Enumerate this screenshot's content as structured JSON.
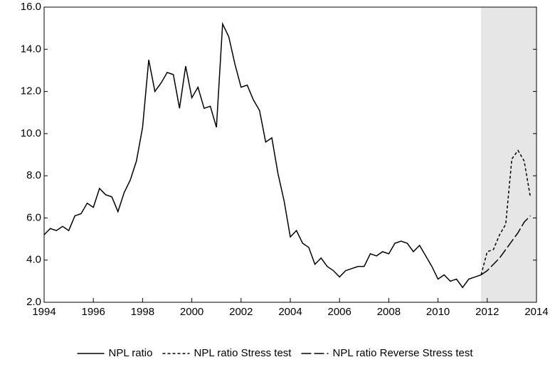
{
  "chart_data": {
    "type": "line",
    "xlim": [
      1994,
      2014
    ],
    "xticks": [
      1994,
      1996,
      1998,
      2000,
      2002,
      2004,
      2006,
      2008,
      2010,
      2012,
      2014
    ],
    "ylim": [
      2,
      16
    ],
    "yticks": [
      {
        "value": 2,
        "label": "2.0"
      },
      {
        "value": 4,
        "label": "4.0"
      },
      {
        "value": 6,
        "label": "6.0"
      },
      {
        "value": 8,
        "label": "8.0"
      },
      {
        "value": 10,
        "label": "10.0"
      },
      {
        "value": 12,
        "label": "12.0"
      },
      {
        "value": 14,
        "label": "14.0"
      },
      {
        "value": 16,
        "label": "16.0"
      }
    ],
    "shaded_region": [
      2011.75,
      2014
    ],
    "shade_color": "#e6e6e6",
    "legend": "bottom",
    "series": [
      {
        "name": "NPL ratio",
        "color": "#000000",
        "dash": "solid",
        "x": [
          1994,
          1994.25,
          1994.5,
          1994.75,
          1995,
          1995.25,
          1995.5,
          1995.75,
          1996,
          1996.25,
          1996.5,
          1996.75,
          1997,
          1997.25,
          1997.5,
          1997.75,
          1998,
          1998.25,
          1998.5,
          1998.75,
          1999,
          1999.25,
          1999.5,
          1999.75,
          2000,
          2000.25,
          2000.5,
          2000.75,
          2001,
          2001.25,
          2001.5,
          2001.75,
          2002,
          2002.25,
          2002.5,
          2002.75,
          2003,
          2003.25,
          2003.5,
          2003.75,
          2004,
          2004.25,
          2004.5,
          2004.75,
          2005,
          2005.25,
          2005.5,
          2005.75,
          2006,
          2006.25,
          2006.5,
          2006.75,
          2007,
          2007.25,
          2007.5,
          2007.75,
          2008,
          2008.25,
          2008.5,
          2008.75,
          2009,
          2009.25,
          2009.5,
          2009.75,
          2010,
          2010.25,
          2010.5,
          2010.75,
          2011,
          2011.25,
          2011.5,
          2011.75
        ],
        "values": [
          5.2,
          5.5,
          5.4,
          5.6,
          5.4,
          6.1,
          6.2,
          6.7,
          6.5,
          7.4,
          7.1,
          7.0,
          6.3,
          7.2,
          7.8,
          8.7,
          10.3,
          13.5,
          12.0,
          12.4,
          12.9,
          12.8,
          11.2,
          13.2,
          11.7,
          12.2,
          11.2,
          11.3,
          10.3,
          15.2,
          14.6,
          13.3,
          12.2,
          12.3,
          11.6,
          11.1,
          9.6,
          9.8,
          8.1,
          6.8,
          5.1,
          5.4,
          4.8,
          4.6,
          3.8,
          4.1,
          3.7,
          3.5,
          3.2,
          3.5,
          3.6,
          3.7,
          3.7,
          4.3,
          4.2,
          4.4,
          4.3,
          4.8,
          4.9,
          4.8,
          4.4,
          4.7,
          4.2,
          3.7,
          3.1,
          3.3,
          3.0,
          3.1,
          2.7,
          3.1,
          3.2,
          3.3
        ]
      },
      {
        "name": "NPL ratio Stress test",
        "color": "#000000",
        "dash": "dashed",
        "x": [
          2011.75,
          2012,
          2012.25,
          2012.5,
          2012.75,
          2013,
          2013.25,
          2013.5,
          2013.75
        ],
        "values": [
          3.3,
          4.4,
          4.5,
          5.2,
          5.7,
          8.8,
          9.2,
          8.7,
          7.0
        ]
      },
      {
        "name": "NPL ratio Reverse Stress test",
        "color": "#000000",
        "dash": "longdash",
        "x": [
          2011.75,
          2012,
          2012.25,
          2012.5,
          2012.75,
          2013,
          2013.25,
          2013.5,
          2013.75
        ],
        "values": [
          3.3,
          3.5,
          3.8,
          4.1,
          4.5,
          4.9,
          5.3,
          5.8,
          6.1
        ]
      }
    ]
  }
}
